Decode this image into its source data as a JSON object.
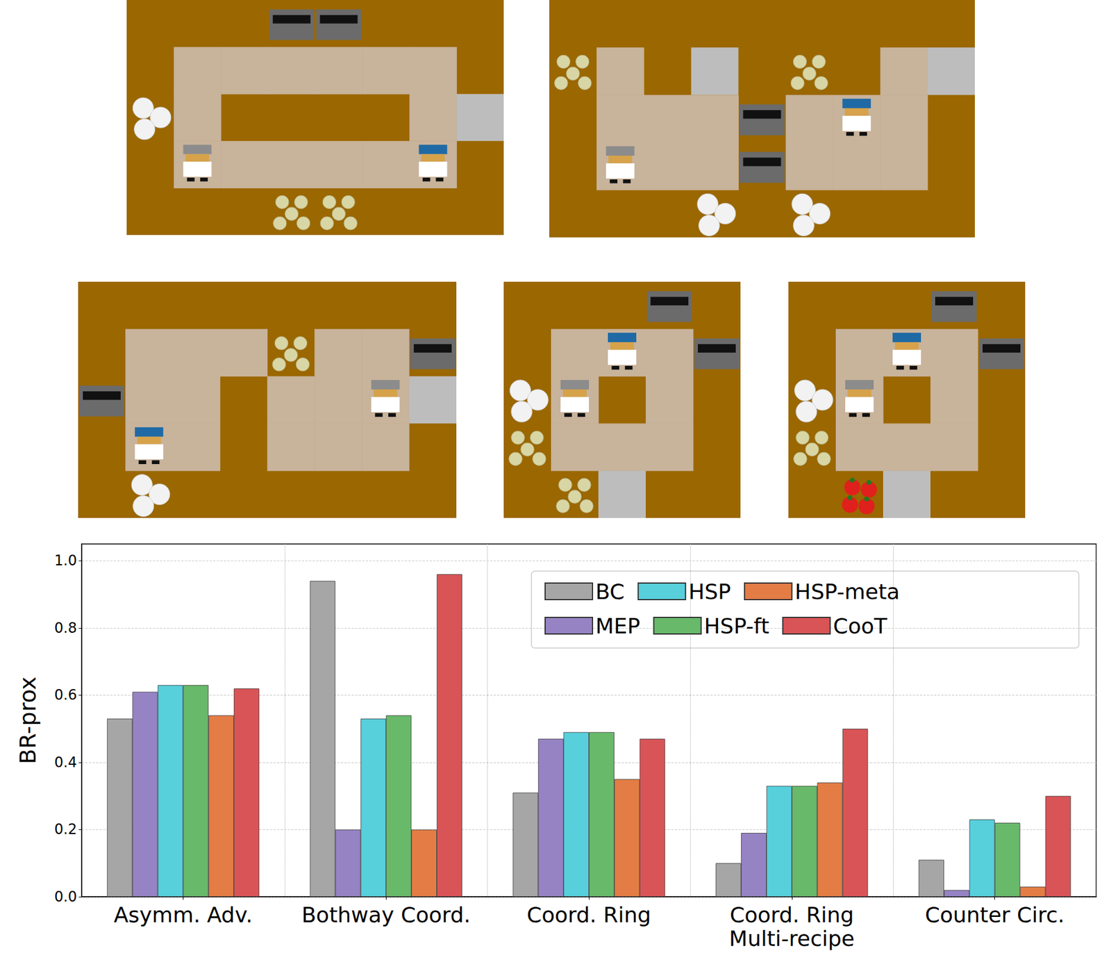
{
  "chart_data": {
    "type": "bar",
    "categories": [
      "Asymm. Adv.",
      "Bothway Coord.",
      "Coord. Ring",
      "Coord. Ring\nMulti-recipe",
      "Counter Circ."
    ],
    "series": [
      {
        "name": "BC",
        "color": "#a6a6a6",
        "values": [
          0.53,
          0.94,
          0.31,
          0.1,
          0.11
        ]
      },
      {
        "name": "MEP",
        "color": "#9683c4",
        "values": [
          0.61,
          0.2,
          0.47,
          0.19,
          0.02
        ]
      },
      {
        "name": "HSP",
        "color": "#57d0dc",
        "values": [
          0.63,
          0.53,
          0.49,
          0.33,
          0.23
        ]
      },
      {
        "name": "HSP-ft",
        "color": "#68b96a",
        "values": [
          0.63,
          0.54,
          0.49,
          0.33,
          0.22
        ]
      },
      {
        "name": "HSP-meta",
        "color": "#e37d45",
        "values": [
          0.54,
          0.2,
          0.35,
          0.34,
          0.03
        ]
      },
      {
        "name": "CooT",
        "color": "#d95456",
        "values": [
          0.62,
          0.96,
          0.47,
          0.5,
          0.3
        ]
      }
    ],
    "ylabel": "BR-prox",
    "ylim": [
      0,
      1.05
    ],
    "yticks": [
      {
        "value": 0,
        "label": "0.0"
      },
      {
        "value": 0.2,
        "label": "0.2"
      },
      {
        "value": 0.4,
        "label": "0.4"
      },
      {
        "value": 0.6,
        "label": "0.6"
      },
      {
        "value": 0.8,
        "label": "0.8"
      },
      {
        "value": 1.0,
        "label": "1.0"
      }
    ],
    "grid": true,
    "legend": "upper right"
  }
}
